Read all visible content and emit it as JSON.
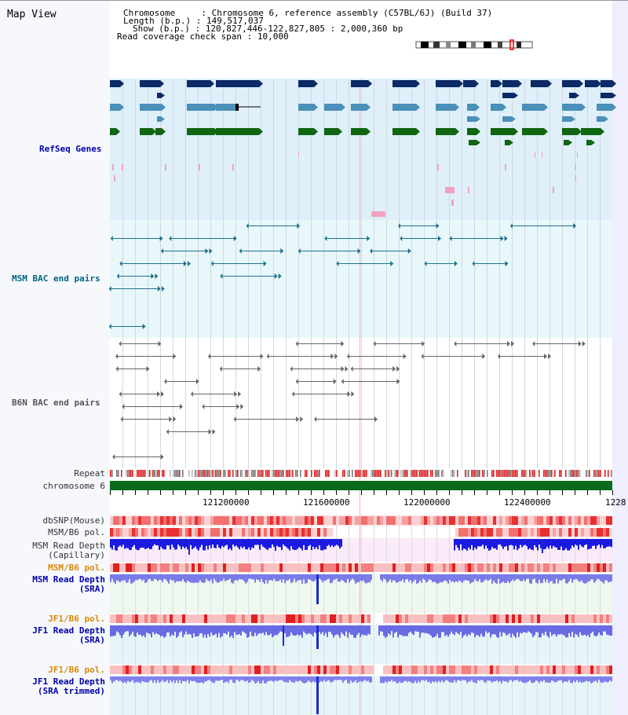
{
  "title": "Map View",
  "header": {
    "chromosome_key": "Chromosome",
    "chromosome_val": "Chromosome 6, reference assembly (C57BL/6J) (Build 37)",
    "length_key": "Length (b.p.)",
    "length_val": "149,517,037",
    "show_key": "Show (b.p.)",
    "show_val": "120,827,446-122,827,805 : 2,000,360 bp",
    "span_key": "Read coverage check span",
    "span_val": "10,000"
  },
  "tracks": {
    "refseq": "RefSeq Genes",
    "msm_bac": "MSM BAC end pairs",
    "b6n_bac": "B6N BAC end pairs",
    "repeat": "Repeat",
    "chromosome": "chromosome 6",
    "dbsnp": "dbSNP(Mouse)",
    "msm_b6_pol_1": "MSM/B6 pol.",
    "msm_read_depth_cap_1": "MSM Read Depth",
    "msm_read_depth_cap_2": "(Capillary)",
    "msm_b6_pol_2": "MSM/B6 pol.",
    "msm_read_depth_sra_1": "MSM Read Depth",
    "msm_read_depth_sra_2": "(SRA)",
    "jf1_b6_pol_1": "JF1/B6 pol.",
    "jf1_read_depth_sra_1": "JF1 Read Depth",
    "jf1_read_depth_sra_2": "(SRA)",
    "jf1_b6_pol_2": "JF1/B6 pol.",
    "jf1_read_depth_trim_1": "JF1 Read Depth",
    "jf1_read_depth_trim_2": "(SRA trimmed)"
  },
  "axis_ticks": [
    "121200000",
    "121600000",
    "122000000",
    "122400000",
    "1228"
  ],
  "colors": {
    "refseq_bg": "#dff0fa",
    "msm_bg": "#e8f8fa",
    "navy": "#0b2a66",
    "steel": "#4a90b8",
    "green": "#116611",
    "pink": "#f4a0c0",
    "teal": "#1d6f8c",
    "grey": "#666666",
    "chrom_green": "#0a6b1a"
  }
}
